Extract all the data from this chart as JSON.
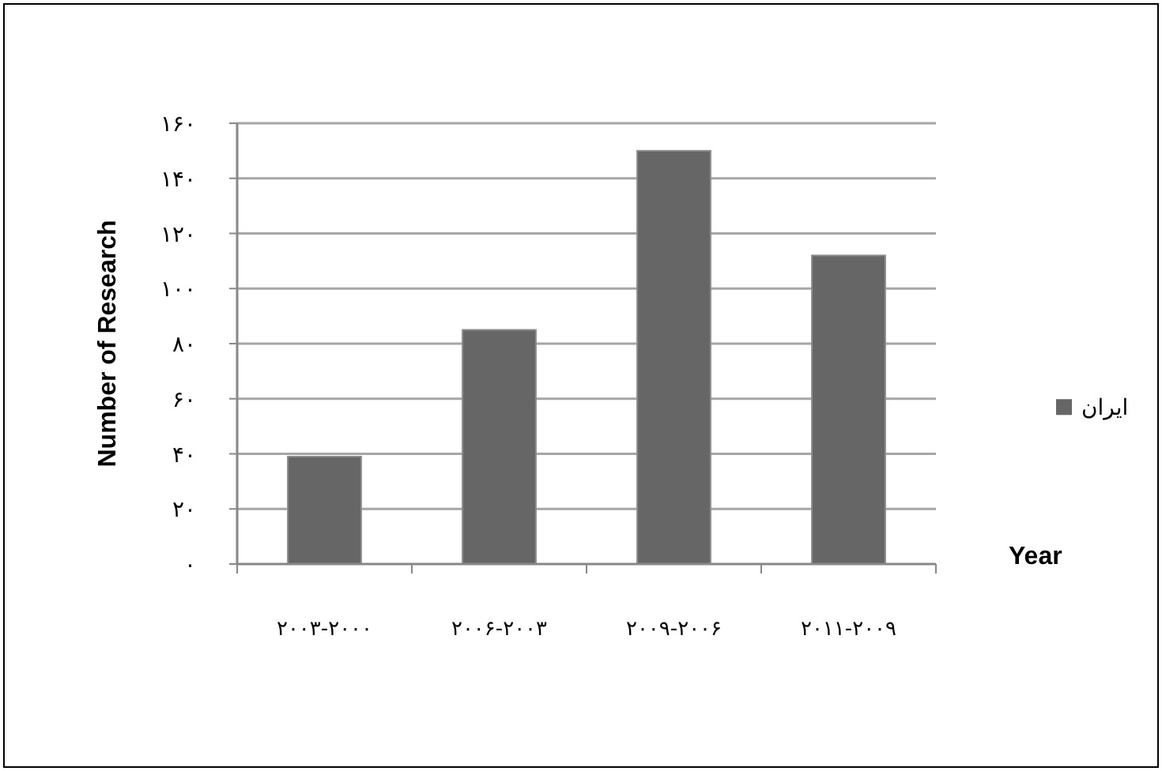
{
  "chart_data": {
    "type": "bar",
    "ylabel": "Number of Research",
    "xlabel": "Year",
    "categories": [
      "۲۰۰۳-۲۰۰۰",
      "۲۰۰۶-۲۰۰۳",
      "۲۰۰۹-۲۰۰۶",
      "۲۰۱۱-۲۰۰۹"
    ],
    "series": [
      {
        "name": "ایران",
        "color": "#666666",
        "values": [
          39,
          85,
          150,
          112
        ]
      }
    ],
    "ylim": [
      0,
      160
    ],
    "yticks": [
      {
        "value": 0,
        "label": "۰"
      },
      {
        "value": 20,
        "label": "۲۰"
      },
      {
        "value": 40,
        "label": "۴۰"
      },
      {
        "value": 60,
        "label": "۶۰"
      },
      {
        "value": 80,
        "label": "۸۰"
      },
      {
        "value": 100,
        "label": "۱۰۰"
      },
      {
        "value": 120,
        "label": "۱۲۰"
      },
      {
        "value": 140,
        "label": "۱۴۰"
      },
      {
        "value": 160,
        "label": "۱۶۰"
      }
    ],
    "grid": "y",
    "legend": "right"
  }
}
